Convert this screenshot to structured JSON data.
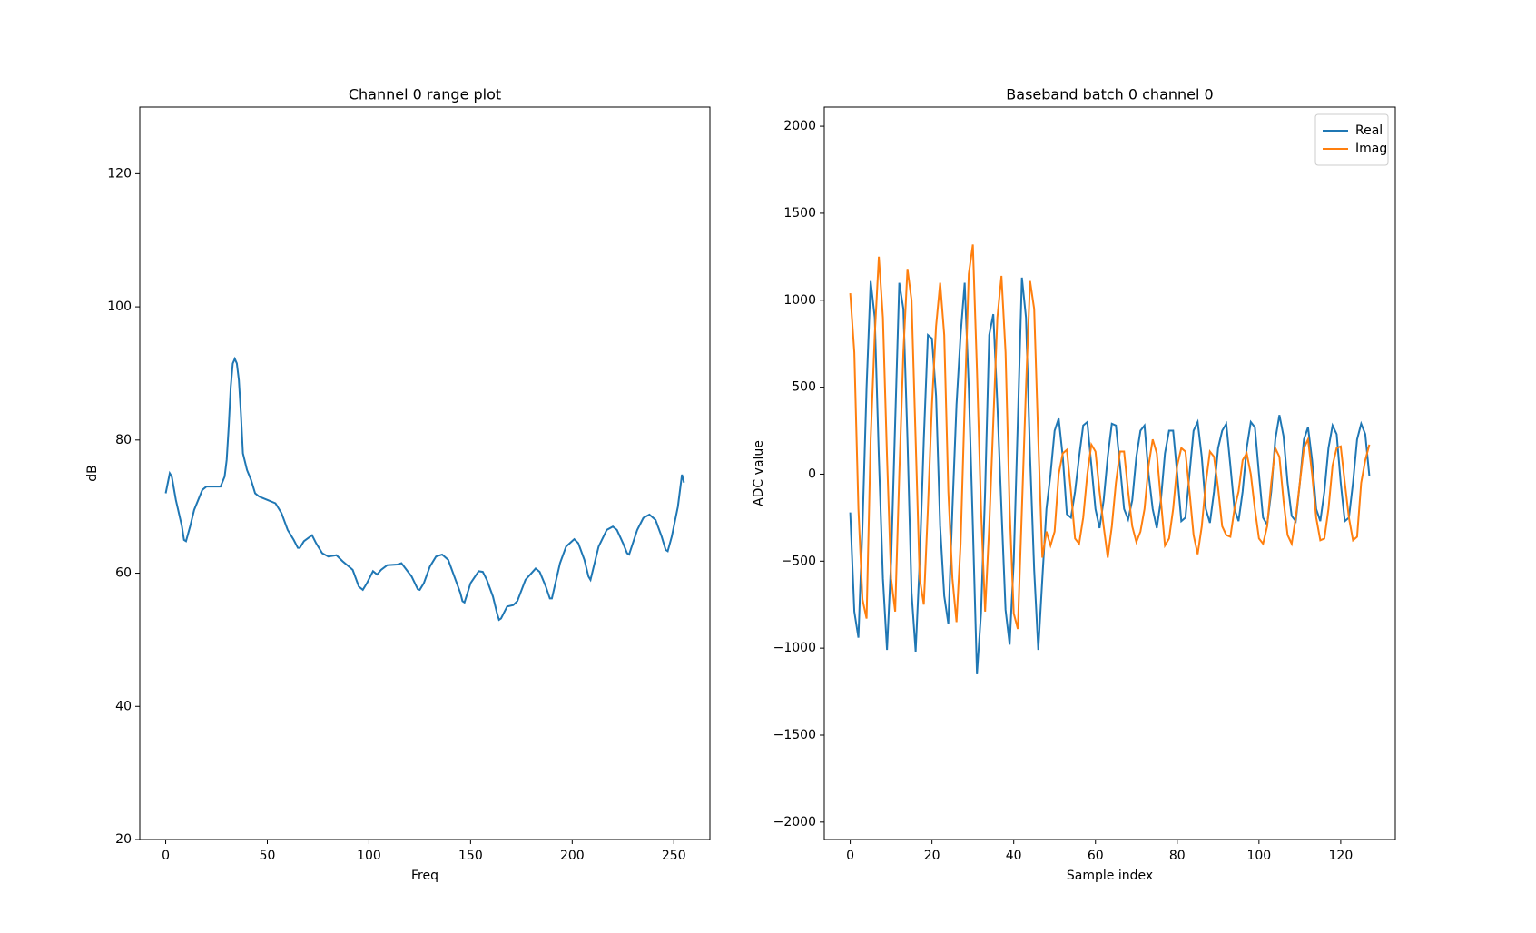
{
  "chart_data": [
    {
      "type": "line",
      "title": "Channel 0 range plot",
      "xlabel": "Freq",
      "ylabel": "dB",
      "color": "#1f77b4",
      "x": [
        0,
        2,
        3,
        5,
        8,
        9,
        10,
        12,
        14,
        18,
        20,
        24,
        27,
        29,
        30,
        31,
        32,
        33,
        34,
        35,
        36,
        37,
        38,
        40,
        42,
        44,
        46,
        50,
        54,
        57,
        60,
        63,
        65,
        66,
        68,
        72,
        74,
        77,
        80,
        84,
        87,
        92,
        95,
        97,
        99,
        102,
        104,
        106,
        109,
        114,
        116,
        119,
        121,
        124,
        125,
        127,
        130,
        133,
        136,
        139,
        142,
        145,
        146,
        147,
        150,
        154,
        156,
        158,
        161,
        163,
        164,
        165,
        168,
        171,
        173,
        177,
        182,
        184,
        187,
        189,
        190,
        194,
        197,
        201,
        203,
        206,
        208,
        209,
        213,
        217,
        220,
        222,
        225,
        227,
        228,
        232,
        235,
        238,
        241,
        244,
        246,
        247,
        249,
        252,
        254,
        255
      ],
      "values": [
        72,
        75,
        74.5,
        71,
        67,
        65,
        64.8,
        67,
        69.5,
        72.5,
        73,
        73,
        73,
        74.5,
        77,
        82,
        88,
        91.5,
        92.2,
        91.5,
        89,
        84,
        78,
        75.5,
        74,
        72,
        71.5,
        71,
        70.5,
        69,
        66.5,
        65,
        63.8,
        63.8,
        64.8,
        65.7,
        64.5,
        63,
        62.5,
        62.7,
        61.8,
        60.5,
        58,
        57.5,
        58.5,
        60.3,
        59.8,
        60.5,
        61.2,
        61.3,
        61.5,
        60.3,
        59.5,
        57.6,
        57.5,
        58.5,
        61,
        62.5,
        62.8,
        62,
        59.5,
        57,
        55.8,
        55.6,
        58.5,
        60.3,
        60.2,
        59,
        56.5,
        54,
        53,
        53.2,
        55,
        55.2,
        55.8,
        59,
        60.7,
        60.2,
        58,
        56.2,
        56.2,
        61.5,
        64,
        65.1,
        64.5,
        62,
        59.5,
        59,
        64,
        66.5,
        67,
        66.5,
        64.5,
        63,
        62.8,
        66.5,
        68.3,
        68.8,
        68,
        65.5,
        63.5,
        63.3,
        65.5,
        70,
        74.8,
        73.6
      ],
      "xlim": [
        -12.75,
        267.75
      ],
      "xticks": [
        0,
        50,
        100,
        150,
        200,
        250
      ],
      "ylim": [
        20,
        130
      ],
      "yticks": [
        20,
        40,
        60,
        80,
        100,
        120
      ]
    },
    {
      "type": "line",
      "title": "Baseband batch 0 channel 0",
      "xlabel": "Sample index",
      "ylabel": "ADC value",
      "legend": "upper right",
      "x": [
        0,
        1,
        2,
        3,
        4,
        5,
        6,
        7,
        8,
        9,
        10,
        11,
        12,
        13,
        14,
        15,
        16,
        17,
        18,
        19,
        20,
        21,
        22,
        23,
        24,
        25,
        26,
        27,
        28,
        29,
        30,
        31,
        32,
        33,
        34,
        35,
        36,
        37,
        38,
        39,
        40,
        41,
        42,
        43,
        44,
        45,
        46,
        47,
        48,
        49,
        50,
        51,
        52,
        53,
        54,
        55,
        56,
        57,
        58,
        59,
        60,
        61,
        62,
        63,
        64,
        65,
        66,
        67,
        68,
        69,
        70,
        71,
        72,
        73,
        74,
        75,
        76,
        77,
        78,
        79,
        80,
        81,
        82,
        83,
        84,
        85,
        86,
        87,
        88,
        89,
        90,
        91,
        92,
        93,
        94,
        95,
        96,
        97,
        98,
        99,
        100,
        101,
        102,
        103,
        104,
        105,
        106,
        107,
        108,
        109,
        110,
        111,
        112,
        113,
        114,
        115,
        116,
        117,
        118,
        119,
        120,
        121,
        122,
        123,
        124,
        125,
        126,
        127
      ],
      "series": [
        {
          "name": "Real",
          "color": "#1f77b4",
          "values": [
            -220,
            -790,
            -940,
            -300,
            500,
            1110,
            900,
            100,
            -600,
            -1010,
            -500,
            300,
            1100,
            950,
            200,
            -680,
            -1020,
            -500,
            200,
            800,
            780,
            450,
            -300,
            -700,
            -860,
            -200,
            400,
            800,
            1100,
            500,
            -300,
            -1150,
            -800,
            -100,
            800,
            920,
            400,
            -200,
            -780,
            -980,
            -500,
            300,
            1130,
            900,
            100,
            -550,
            -1010,
            -600,
            -200,
            0,
            250,
            320,
            100,
            -230,
            -250,
            -100,
            100,
            280,
            300,
            50,
            -200,
            -310,
            -150,
            100,
            290,
            280,
            50,
            -200,
            -260,
            -150,
            100,
            250,
            280,
            0,
            -200,
            -310,
            -150,
            120,
            250,
            250,
            0,
            -270,
            -250,
            0,
            250,
            300,
            100,
            -200,
            -280,
            -100,
            150,
            250,
            290,
            50,
            -200,
            -270,
            -100,
            150,
            300,
            270,
            0,
            -250,
            -290,
            -100,
            200,
            340,
            220,
            -50,
            -240,
            -270,
            -50,
            200,
            270,
            80,
            -200,
            -270,
            -100,
            150,
            280,
            230,
            -50,
            -270,
            -250,
            -50,
            200,
            290,
            230,
            -10
          ]
        },
        {
          "name": "Imag",
          "color": "#ff7f0e",
          "values": [
            1040,
            700,
            -200,
            -720,
            -830,
            200,
            800,
            1250,
            900,
            100,
            -600,
            -790,
            0,
            700,
            1180,
            1000,
            200,
            -600,
            -750,
            -200,
            400,
            850,
            1100,
            800,
            -100,
            -600,
            -850,
            -400,
            400,
            1150,
            1320,
            600,
            -200,
            -790,
            -300,
            300,
            900,
            1140,
            700,
            -200,
            -800,
            -890,
            -200,
            500,
            1110,
            950,
            200,
            -480,
            -330,
            -410,
            -330,
            0,
            120,
            140,
            -100,
            -370,
            -400,
            -250,
            0,
            170,
            130,
            -100,
            -300,
            -480,
            -300,
            -50,
            130,
            130,
            -100,
            -300,
            -390,
            -330,
            -200,
            50,
            200,
            120,
            -150,
            -410,
            -370,
            -200,
            50,
            150,
            130,
            -100,
            -350,
            -460,
            -300,
            -50,
            130,
            100,
            -80,
            -300,
            -350,
            -360,
            -200,
            -100,
            80,
            120,
            0,
            -200,
            -370,
            -400,
            -300,
            -50,
            150,
            100,
            -150,
            -350,
            -400,
            -250,
            -50,
            150,
            200,
            0,
            -250,
            -380,
            -370,
            -200,
            50,
            150,
            160,
            -50,
            -250,
            -380,
            -360,
            -50,
            80,
            170
          ]
        }
      ],
      "xlim": [
        -6.35,
        133.35
      ],
      "xticks": [
        0,
        20,
        40,
        60,
        80,
        100,
        120
      ],
      "ylim": [
        -2100,
        2110
      ],
      "yticks": [
        {
          "value": -2000,
          "label": "−2000"
        },
        {
          "value": -1500,
          "label": "−1500"
        },
        {
          "value": -1000,
          "label": "−1000"
        },
        {
          "value": -500,
          "label": "−500"
        },
        0,
        500,
        1000,
        1500,
        2000
      ]
    }
  ]
}
